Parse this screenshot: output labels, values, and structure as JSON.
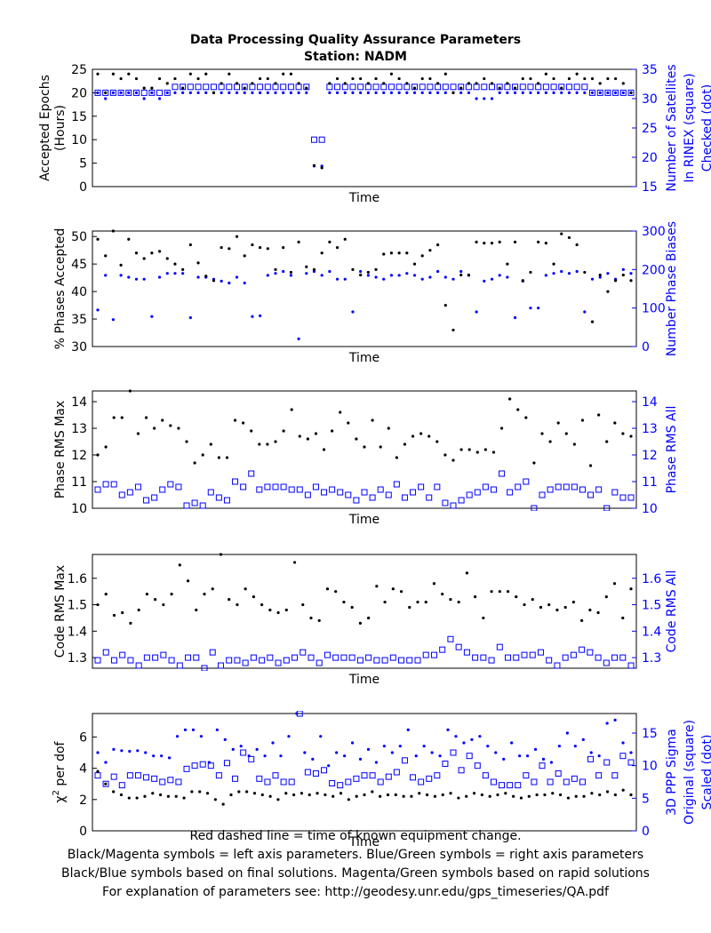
{
  "page": {
    "title_line1": "Data Processing Quality Assurance Parameters",
    "title_line2": "Station: NADM",
    "footer": [
      "Red dashed line = time of known equipment change.",
      "Black/Magenta symbols = left axis parameters. Blue/Green symbols = right axis parameters",
      "Black/Blue symbols based on final solutions.  Magenta/Green symbols based on rapid solutions",
      "For explanation of parameters see: http://geodesy.unr.edu/gps_timeseries/QA.pdf"
    ]
  },
  "colors": {
    "left": "#000000",
    "right": "#0000ff"
  },
  "chart_data": [
    {
      "type": "scatter",
      "xlabel": "Time",
      "ylabel": [
        "Accepted Epochs",
        "(Hours)"
      ],
      "ylabel_right": [
        "Number of Satellites",
        "In RINEX (square)",
        "Checked (dot)"
      ],
      "ylim": [
        0,
        25
      ],
      "yticks": [
        0,
        5,
        10,
        15,
        20,
        25
      ],
      "ylim_right": [
        15,
        35
      ],
      "yticks_right": [
        15,
        20,
        25,
        30,
        35
      ],
      "x_count": 70,
      "left_series": {
        "marker": "dot",
        "values": [
          24,
          20,
          24,
          23,
          24,
          23,
          21,
          21,
          23,
          22,
          23,
          21,
          24,
          23,
          24,
          20,
          22,
          24,
          22,
          21,
          22,
          23,
          23,
          22,
          24,
          24,
          22,
          21,
          4.5,
          4,
          22,
          23,
          22,
          23,
          23,
          22,
          23,
          22,
          24,
          23,
          22,
          21,
          23,
          23,
          22,
          24,
          20,
          21,
          22,
          22,
          23,
          22,
          21,
          22,
          21,
          23,
          23,
          22,
          24,
          23,
          21,
          23,
          24,
          23,
          23,
          22,
          23,
          23,
          22,
          20
        ]
      },
      "right_series": [
        {
          "marker": "square",
          "values": [
            31,
            31,
            31,
            31,
            31,
            31,
            31,
            31,
            31,
            31,
            32,
            32,
            32,
            32,
            32,
            32,
            32,
            32,
            32,
            32,
            32,
            32,
            32,
            32,
            32,
            32,
            32,
            32,
            23,
            23,
            32,
            32,
            32,
            32,
            32,
            32,
            32,
            32,
            32,
            32,
            32,
            32,
            32,
            32,
            32,
            32,
            32,
            32,
            32,
            32,
            32,
            32,
            32,
            32,
            32,
            32,
            32,
            32,
            32,
            32,
            32,
            32,
            32,
            32,
            31,
            31,
            31,
            31,
            31,
            31
          ]
        },
        {
          "marker": "dot",
          "values": [
            31,
            30,
            31,
            31,
            31,
            31,
            30,
            31,
            30,
            31,
            31,
            31,
            31,
            31,
            31,
            31,
            31,
            31,
            31,
            31,
            31,
            31,
            31,
            31,
            31,
            31,
            31,
            31,
            18.5,
            18.5,
            31,
            31,
            31,
            31,
            31,
            31,
            31,
            31,
            31,
            31,
            31,
            31,
            31,
            31,
            31,
            31,
            31,
            31,
            31,
            30,
            30,
            30,
            31,
            31,
            31,
            31,
            31,
            31,
            31,
            31,
            31,
            31,
            31,
            31,
            31,
            31,
            31,
            31,
            31,
            31
          ]
        }
      ]
    },
    {
      "type": "scatter",
      "xlabel": "Time",
      "ylabel": [
        "% Phases Accepted"
      ],
      "ylabel_right": [
        "Number Phase Biases"
      ],
      "ylim": [
        30,
        51
      ],
      "yticks": [
        30,
        35,
        40,
        45,
        50
      ],
      "ylim_right": [
        0,
        300
      ],
      "yticks_right": [
        0,
        100,
        200,
        300
      ],
      "x_count": 70,
      "left_series": {
        "marker": "dot",
        "values": [
          49.5,
          46.5,
          51,
          44.8,
          49.5,
          47,
          46,
          47,
          47.3,
          46,
          45,
          44,
          48.5,
          45.2,
          42.8,
          42,
          48,
          47.8,
          50,
          46.5,
          48.5,
          48,
          47.8,
          44,
          48,
          43.5,
          49,
          44.5,
          44,
          47,
          49,
          48,
          49.5,
          44,
          43,
          43.5,
          44,
          46.8,
          47,
          47,
          47,
          45,
          46.5,
          47.5,
          48.5,
          37.5,
          33,
          43,
          43,
          49,
          48.8,
          48.8,
          49,
          45,
          49,
          42,
          43.5,
          49,
          48.8,
          45,
          50.5,
          49.8,
          48.5,
          43.5,
          34.5,
          43,
          40,
          42,
          43,
          42
        ]
      },
      "right_series": [
        {
          "marker": "dot",
          "values": [
            95,
            185,
            70,
            185,
            180,
            175,
            175,
            78,
            180,
            190,
            190,
            190,
            75,
            180,
            180,
            175,
            170,
            165,
            180,
            165,
            78,
            80,
            185,
            190,
            195,
            185,
            20,
            190,
            195,
            185,
            195,
            175,
            175,
            90,
            195,
            185,
            180,
            175,
            185,
            185,
            190,
            185,
            175,
            180,
            195,
            180,
            175,
            195,
            185,
            90,
            170,
            175,
            185,
            180,
            75,
            170,
            100,
            100,
            185,
            190,
            195,
            190,
            195,
            90,
            175,
            180,
            190,
            175,
            200,
            190
          ]
        }
      ]
    },
    {
      "type": "scatter",
      "xlabel": "Time",
      "ylabel": [
        "Phase RMS Max"
      ],
      "ylabel_right": [
        "Phase RMS All"
      ],
      "ylim": [
        10,
        14.4
      ],
      "yticks": [
        10,
        11,
        12,
        13,
        14
      ],
      "ylim_right": [
        10,
        14.4
      ],
      "yticks_right": [
        10,
        11,
        12,
        13,
        14
      ],
      "x_count": 70,
      "left_series": {
        "marker": "dot",
        "values": [
          12,
          12.3,
          13.4,
          13.4,
          14.4,
          12.8,
          13.4,
          13,
          13.3,
          13.1,
          13,
          12.5,
          11.7,
          12,
          12.4,
          11.9,
          11.9,
          13.3,
          13.2,
          12.9,
          12.4,
          12.4,
          12.5,
          12.9,
          13.7,
          12.7,
          12.6,
          12.8,
          12.2,
          12.9,
          13.6,
          13.2,
          12.6,
          12.3,
          13.3,
          12.3,
          13,
          11.9,
          12.4,
          12.7,
          12.8,
          12.7,
          12.5,
          12,
          11.8,
          12.2,
          12.2,
          12.1,
          12.2,
          12.1,
          13,
          14.1,
          13.7,
          13.4,
          11.7,
          12.8,
          12.5,
          13.2,
          12.8,
          12.4,
          13.3,
          11.6,
          13.5,
          12.5,
          13.2,
          12.8,
          12.7
        ]
      },
      "right_series": [
        {
          "marker": "square",
          "values": [
            10.7,
            10.9,
            10.9,
            10.5,
            10.6,
            10.8,
            10.3,
            10.4,
            10.7,
            10.9,
            10.8,
            10.1,
            10.2,
            10.1,
            10.6,
            10.4,
            10.3,
            11,
            10.8,
            11.3,
            10.7,
            10.8,
            10.8,
            10.8,
            10.7,
            10.7,
            10.5,
            10.8,
            10.6,
            10.7,
            10.6,
            10.5,
            10.3,
            10.6,
            10.4,
            10.7,
            10.5,
            10.9,
            10.4,
            10.6,
            10.8,
            10.4,
            10.8,
            10.2,
            10.1,
            10.3,
            10.5,
            10.6,
            10.8,
            10.7,
            11.3,
            10.6,
            10.8,
            11,
            10,
            10.5,
            10.7,
            10.8,
            10.8,
            10.8,
            10.7,
            10.5,
            10.7,
            10,
            10.6,
            10.4,
            10.4
          ]
        }
      ]
    },
    {
      "type": "scatter",
      "xlabel": "Time",
      "ylabel": [
        "Code RMS Max"
      ],
      "ylabel_right": [
        "Code RMS All"
      ],
      "ylim": [
        1.26,
        1.69
      ],
      "yticks": [
        1.3,
        1.4,
        1.5,
        1.6
      ],
      "ylim_right": [
        1.26,
        1.69
      ],
      "yticks_right": [
        1.3,
        1.4,
        1.5,
        1.6
      ],
      "x_count": 70,
      "left_series": {
        "marker": "dot",
        "values": [
          1.5,
          1.54,
          1.46,
          1.47,
          1.43,
          1.48,
          1.54,
          1.52,
          1.5,
          1.54,
          1.65,
          1.59,
          1.48,
          1.54,
          1.56,
          1.69,
          1.52,
          1.5,
          1.56,
          1.53,
          1.5,
          1.48,
          1.47,
          1.48,
          1.66,
          1.5,
          1.45,
          1.44,
          1.56,
          1.55,
          1.51,
          1.49,
          1.43,
          1.45,
          1.57,
          1.51,
          1.56,
          1.55,
          1.49,
          1.51,
          1.51,
          1.58,
          1.54,
          1.52,
          1.51,
          1.62,
          1.53,
          1.45,
          1.55,
          1.55,
          1.55,
          1.53,
          1.5,
          1.52,
          1.49,
          1.5,
          1.48,
          1.49,
          1.51,
          1.44,
          1.48,
          1.47,
          1.53,
          1.58,
          1.45,
          1.56
        ]
      },
      "right_series": [
        {
          "marker": "square",
          "values": [
            1.29,
            1.32,
            1.29,
            1.31,
            1.29,
            1.27,
            1.3,
            1.3,
            1.31,
            1.29,
            1.27,
            1.3,
            1.3,
            1.26,
            1.32,
            1.27,
            1.29,
            1.29,
            1.28,
            1.3,
            1.29,
            1.3,
            1.28,
            1.29,
            1.3,
            1.32,
            1.3,
            1.28,
            1.31,
            1.3,
            1.3,
            1.3,
            1.29,
            1.3,
            1.29,
            1.29,
            1.3,
            1.29,
            1.29,
            1.29,
            1.31,
            1.31,
            1.33,
            1.37,
            1.34,
            1.32,
            1.3,
            1.3,
            1.29,
            1.34,
            1.3,
            1.3,
            1.31,
            1.31,
            1.32,
            1.29,
            1.27,
            1.3,
            1.31,
            1.33,
            1.32,
            1.3,
            1.28,
            1.3,
            1.3,
            1.27
          ]
        }
      ]
    },
    {
      "type": "scatter",
      "xlabel": "Time",
      "ylabel": [
        "χ² per dof"
      ],
      "ylabel_right": [
        "3D PPP Sigma",
        "Original (square)",
        "Scaled (dot)"
      ],
      "ylim": [
        0,
        7.5
      ],
      "yticks": [
        0,
        2,
        4,
        6
      ],
      "ylim_right": [
        0,
        18
      ],
      "yticks_right": [
        0,
        5,
        10,
        15
      ],
      "x_count": 70,
      "left_series": {
        "marker": "dot",
        "values": [
          3.8,
          3,
          2.5,
          2.3,
          2.1,
          2.1,
          2.2,
          2.4,
          2.3,
          2.2,
          2.2,
          2.1,
          2.5,
          2.5,
          2.4,
          2,
          1.7,
          2.3,
          2.5,
          2.5,
          2.4,
          2.3,
          2.2,
          2,
          2.4,
          2.3,
          2.4,
          2.3,
          2.4,
          2.3,
          2.2,
          2.4,
          2,
          2.2,
          2.3,
          2.5,
          2.2,
          2.3,
          2.3,
          2.2,
          2.2,
          2.4,
          2.3,
          2.2,
          2.3,
          2.4,
          2.1,
          2.2,
          2.4,
          2.3,
          2.2,
          2.3,
          2.4,
          2.2,
          2.1,
          2.2,
          2.3,
          2.3,
          2.4,
          2.3,
          2.1,
          2.2,
          2.2,
          2.4,
          2.3,
          2.5,
          2.3,
          2.6,
          2.3
        ]
      },
      "right_series": [
        {
          "marker": "square",
          "values": [
            8.5,
            7.2,
            8.3,
            7,
            8.5,
            8.5,
            8.2,
            8,
            7.5,
            7.8,
            7.5,
            9.5,
            10,
            10.2,
            10,
            8.5,
            10.4,
            8,
            12,
            11,
            8,
            7.5,
            8.5,
            7.5,
            7.5,
            18,
            9,
            8.8,
            9.3,
            7.3,
            7,
            7.5,
            8,
            8.5,
            8.5,
            7.5,
            8.3,
            9,
            10.8,
            8.2,
            7.5,
            8,
            8.5,
            10.3,
            12,
            9.3,
            11.5,
            10,
            8.5,
            7.5,
            7,
            7,
            7,
            8.5,
            7.5,
            10,
            7.5,
            8.8,
            7.5,
            8,
            7.5,
            11,
            8.5,
            10.5,
            8.5,
            11.5,
            10.5
          ]
        },
        {
          "marker": "dot",
          "values": [
            12,
            10.5,
            12.5,
            12.3,
            12.2,
            12.3,
            12,
            11.5,
            11.5,
            11.2,
            14.5,
            15.5,
            15.5,
            14.5,
            10.5,
            15.5,
            14,
            12.5,
            13,
            11.5,
            12.5,
            11.5,
            13.5,
            11.5,
            14.5,
            18,
            12,
            11,
            14.5,
            10,
            12,
            11.5,
            13.5,
            11,
            12.5,
            10.5,
            13,
            12,
            13,
            15.5,
            11.5,
            13,
            12,
            11.5,
            15.5,
            14.5,
            13.5,
            14,
            14.5,
            13,
            12,
            11,
            13.5,
            11.5,
            11.5,
            12.5,
            11,
            10.5,
            13,
            15,
            13,
            14,
            12,
            11.5,
            16.5,
            17,
            13.5,
            12
          ]
        }
      ]
    }
  ]
}
